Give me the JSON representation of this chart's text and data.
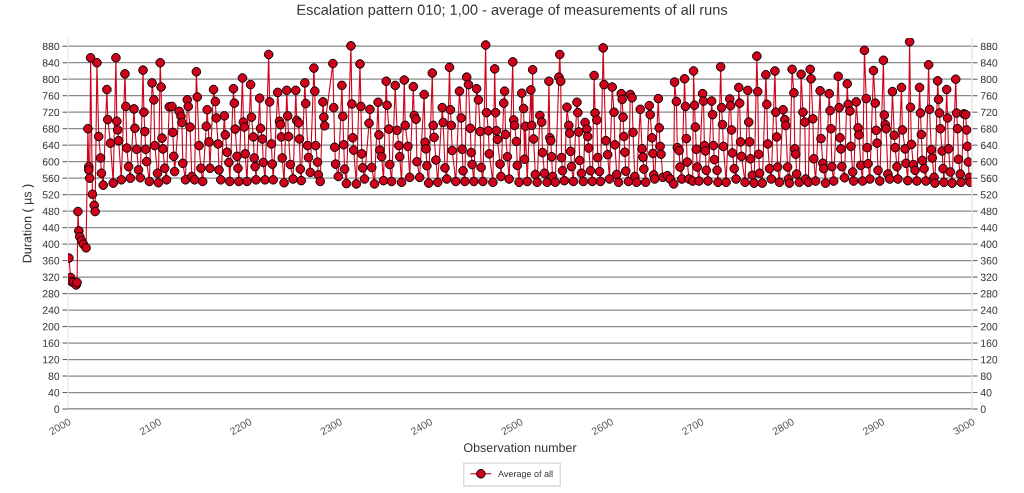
{
  "chart_data": {
    "type": "line",
    "title": "Escalation pattern 010; 1,00 - average of measurements of all runs",
    "xlabel": "Observation number",
    "ylabel": "Duration ( µs )",
    "series": [
      {
        "name": "Average of all",
        "color": "#d0021b",
        "x": [
          2001,
          2003,
          2004,
          2006,
          2009,
          2010,
          2011,
          2012,
          2013,
          2015,
          2017,
          2020,
          2022,
          2023,
          2023,
          2024,
          2025,
          2027,
          2029,
          2030,
          2032,
          2034,
          2036,
          2037,
          2039,
          2043,
          2044,
          2047,
          2050,
          2053,
          2054,
          2055,
          2056,
          2059,
          2063,
          2064,
          2065,
          2067,
          2069,
          2073,
          2074,
          2076,
          2078,
          2080,
          2083,
          2084,
          2085,
          2086,
          2087,
          2090,
          2093,
          2095,
          2096,
          2099,
          2100,
          2102,
          2103,
          2104,
          2105,
          2107,
          2109,
          2112,
          2115,
          2116,
          2117,
          2118,
          2123,
          2125,
          2126,
          2127,
          2130,
          2132,
          2133,
          2135,
          2137,
          2140,
          2142,
          2143,
          2145,
          2147,
          2149,
          2153,
          2154,
          2156,
          2157,
          2161,
          2163,
          2164,
          2166,
          2167,
          2169,
          2173,
          2174,
          2176,
          2178,
          2179,
          2183,
          2184,
          2185,
          2187,
          2188,
          2189,
          2193,
          2194,
          2195,
          2196,
          2198,
          2202,
          2203,
          2205,
          2206,
          2207,
          2208,
          2212,
          2213,
          2215,
          2216,
          2218,
          2222,
          2223,
          2225,
          2226,
          2227,
          2232,
          2234,
          2235,
          2236,
          2237,
          2239,
          2242,
          2243,
          2244,
          2246,
          2249,
          2252,
          2253,
          2255,
          2256,
          2257,
          2258,
          2262,
          2263,
          2265,
          2266,
          2268,
          2272,
          2273,
          2274,
          2276,
          2277,
          2279,
          2282,
          2283,
          2284,
          2293,
          2294,
          2295,
          2296,
          2299,
          2303,
          2304,
          2305,
          2306,
          2308,
          2313,
          2314,
          2315,
          2316,
          2319,
          2323,
          2324,
          2325,
          2326,
          2328,
          2333,
          2334,
          2336,
          2339,
          2343,
          2344,
          2345,
          2347,
          2349,
          2352,
          2353,
          2355,
          2356,
          2358,
          2362,
          2364,
          2366,
          2367,
          2369,
          2372,
          2373,
          2376,
          2378,
          2382,
          2383,
          2385,
          2386,
          2389,
          2394,
          2395,
          2396,
          2397,
          2399,
          2403,
          2404,
          2405,
          2407,
          2409,
          2414,
          2415,
          2417,
          2419,
          2422,
          2423,
          2424,
          2425,
          2429,
          2433,
          2435,
          2436,
          2437,
          2439,
          2441,
          2443,
          2445,
          2446,
          2447,
          2449,
          2452,
          2454,
          2456,
          2457,
          2459,
          2462,
          2463,
          2465,
          2466,
          2470,
          2472,
          2473,
          2474,
          2475,
          2478,
          2479,
          2482,
          2483,
          2484,
          2486,
          2488,
          2492,
          2493,
          2494,
          2496,
          2497,
          2499,
          2502,
          2504,
          2505,
          2506,
          2508,
          2512,
          2513,
          2514,
          2515,
          2517,
          2519,
          2522,
          2524,
          2525,
          2527,
          2530,
          2532,
          2533,
          2534,
          2535,
          2536,
          2539,
          2543,
          2544,
          2545,
          2546,
          2547,
          2549,
          2552,
          2554,
          2555,
          2556,
          2557,
          2559,
          2563,
          2564,
          2565,
          2566,
          2568,
          2570,
          2572,
          2574,
          2575,
          2576,
          2578,
          2580,
          2582,
          2583,
          2585,
          2586,
          2588,
          2589,
          2592,
          2593,
          2595,
          2597,
          2599,
          2602,
          2604,
          2605,
          2607,
          2609,
          2612,
          2613,
          2614,
          2615,
          2616,
          2617,
          2620,
          2622,
          2624,
          2625,
          2627,
          2629,
          2633,
          2635,
          2636,
          2637,
          2639,
          2643,
          2644,
          2646,
          2647,
          2648,
          2649,
          2653,
          2654,
          2655,
          2656,
          2658,
          2663,
          2666,
          2670,
          2671,
          2673,
          2674,
          2676,
          2677,
          2679,
          2682,
          2683,
          2684,
          2685,
          2687,
          2691,
          2692,
          2693,
          2694,
          2695,
          2696,
          2698,
          2702,
          2703,
          2704,
          2705,
          2706,
          2708,
          2712,
          2713,
          2714,
          2715,
          2718,
          2719,
          2722,
          2723,
          2724,
          2725,
          2728,
          2732,
          2733,
          2734,
          2735,
          2737,
          2739,
          2742,
          2743,
          2744,
          2745,
          2749,
          2752,
          2753,
          2754,
          2755,
          2757,
          2759,
          2762,
          2763,
          2764,
          2765,
          2768,
          2772,
          2773,
          2774,
          2776,
          2778,
          2782,
          2783,
          2784,
          2785,
          2787,
          2791,
          2793,
          2794,
          2796,
          2797,
          2798,
          2801,
          2803,
          2804,
          2805,
          2806,
          2809,
          2811,
          2813,
          2815,
          2816,
          2819,
          2821,
          2822,
          2824,
          2825,
          2827,
          2832,
          2833,
          2835,
          2836,
          2838,
          2842,
          2843,
          2844,
          2845,
          2847,
          2852,
          2853,
          2854,
          2855,
          2856,
          2859,
          2862,
          2863,
          2865,
          2866,
          2868,
          2869,
          2872,
          2874,
          2875,
          2877,
          2879,
          2881,
          2883,
          2884,
          2885,
          2887,
          2891,
          2893,
          2894,
          2895,
          2896,
          2898,
          2902,
          2903,
          2904,
          2905,
          2907,
          2909,
          2912,
          2914,
          2915,
          2917,
          2918,
          2922,
          2923,
          2926,
          2927,
          2929,
          2931,
          2932,
          2933,
          2935,
          2937,
          2939,
          2942,
          2943,
          2944,
          2945,
          2947,
          2949,
          2952,
          2953,
          2955,
          2956,
          2958,
          2959,
          2962,
          2963,
          2964,
          2965,
          2967,
          2968,
          2969,
          2972,
          2973,
          2974,
          2976,
          2978,
          2982,
          2983,
          2984,
          2985,
          2987,
          2988,
          2991,
          2993,
          2994,
          2995,
          2996,
          2997,
          2998
        ],
        "values": [
          366,
          319,
          309,
          307,
          301,
          307,
          479,
          432,
          418,
          408,
          400,
          391,
          680,
          588,
          580,
          560,
          852,
          521,
          494,
          479,
          840,
          661,
          609,
          572,
          543,
          775,
          702,
          645,
          548,
          852,
          698,
          677,
          651,
          556,
          813,
          734,
          633,
          588,
          560,
          728,
          681,
          630,
          580,
          561,
          822,
          720,
          673,
          630,
          600,
          552,
          791,
          750,
          639,
          572,
          549,
          840,
          781,
          657,
          631,
          584,
          556,
          733,
          734,
          671,
          613,
          576,
          722,
          710,
          695,
          596,
          556,
          750,
          734,
          684,
          564,
          556,
          818,
          757,
          639,
          584,
          552,
          686,
          726,
          648,
          584,
          775,
          746,
          706,
          643,
          580,
          556,
          711,
          665,
          623,
          598,
          552,
          777,
          742,
          679,
          613,
          584,
          552,
          803,
          696,
          684,
          619,
          552,
          787,
          708,
          660,
          609,
          588,
          556,
          754,
          681,
          655,
          598,
          556,
          860,
          745,
          643,
          594,
          556,
          768,
          698,
          690,
          660,
          609,
          549,
          773,
          711,
          661,
          593,
          558,
          773,
          700,
          694,
          655,
          582,
          554,
          791,
          741,
          639,
          610,
          574,
          827,
          771,
          639,
          599,
          568,
          552,
          745,
          708,
          687,
          838,
          731,
          635,
          594,
          564,
          785,
          710,
          641,
          582,
          547,
          881,
          740,
          658,
          628,
          546,
          837,
          734,
          619,
          585,
          558,
          693,
          727,
          586,
          546,
          744,
          665,
          628,
          612,
          554,
          795,
          737,
          679,
          593,
          552,
          785,
          676,
          639,
          612,
          550,
          798,
          688,
          637,
          562,
          782,
          712,
          703,
          600,
          562,
          763,
          647,
          631,
          590,
          548,
          815,
          688,
          659,
          604,
          550,
          731,
          695,
          585,
          558,
          829,
          726,
          688,
          627,
          552,
          771,
          706,
          630,
          578,
          552,
          805,
          787,
          681,
          622,
          593,
          552,
          777,
          750,
          673,
          586,
          552,
          883,
          719,
          675,
          619,
          550,
          825,
          719,
          675,
          654,
          594,
          564,
          742,
          771,
          666,
          612,
          558,
          842,
          701,
          688,
          649,
          591,
          550,
          766,
          729,
          606,
          686,
          552,
          774,
          688,
          823,
          655,
          569,
          550,
          712,
          696,
          622,
          572,
          550,
          795,
          658,
          651,
          612,
          564,
          550,
          805,
          860,
          795,
          610,
          578,
          554,
          732,
          688,
          669,
          625,
          588,
          552,
          744,
          719,
          672,
          603,
          572,
          552,
          695,
          679,
          661,
          633,
          578,
          552,
          809,
          718,
          701,
          610,
          576,
          552,
          876,
          787,
          651,
          617,
          558,
          781,
          720,
          641,
          569,
          550,
          765,
          751,
          708,
          661,
          623,
          577,
          552,
          763,
          755,
          671,
          564,
          550,
          727,
          631,
          611,
          582,
          550,
          736,
          714,
          658,
          620,
          568,
          558,
          753,
          682,
          637,
          618,
          562,
          566,
          558,
          546,
          793,
          746,
          634,
          627,
          587,
          558,
          801,
          734,
          656,
          599,
          558,
          553,
          820,
          737,
          684,
          630,
          587,
          553,
          765,
          747,
          639,
          626,
          579,
          553,
          747,
          714,
          639,
          605,
          579,
          550,
          830,
          731,
          690,
          637,
          550,
          752,
          736,
          677,
          621,
          583,
          558,
          780,
          742,
          648,
          613,
          550,
          773,
          696,
          648,
          607,
          567,
          548,
          856,
          770,
          618,
          572,
          548,
          811,
          739,
          643,
          583,
          558,
          820,
          720,
          660,
          587,
          550,
          726,
          702,
          688,
          587,
          558,
          548,
          824,
          767,
          631,
          618,
          570,
          550,
          812,
          720,
          696,
          558,
          550,
          824,
          801,
          704,
          607,
          553,
          772,
          656,
          596,
          583,
          548,
          765,
          724,
          680,
          588,
          553,
          807,
          731,
          658,
          631,
          588,
          561,
          789,
          739,
          723,
          637,
          575,
          553,
          745,
          682,
          665,
          591,
          553,
          870,
          753,
          634,
          595,
          558,
          821,
          742,
          676,
          645,
          579,
          553,
          846,
          713,
          690,
          680,
          570,
          558,
          770,
          664,
          634,
          588,
          558,
          780,
          677,
          631,
          596,
          554,
          891,
          732,
          642,
          593,
          579,
          553,
          780,
          718,
          666,
          603,
          583,
          553,
          835,
          727,
          629,
          609,
          562,
          548,
          796,
          751,
          718,
          680,
          626,
          583,
          550,
          775,
          706,
          631,
          575,
          548,
          800,
          718,
          680,
          606,
          570,
          550,
          716,
          714,
          677,
          637,
          599,
          562,
          550
        ]
      }
    ],
    "xlim": [
      2000,
      3000
    ],
    "xticks": [
      2000,
      2100,
      2200,
      2300,
      2400,
      2500,
      2600,
      2700,
      2800,
      2900,
      3000
    ],
    "ylim": [
      0,
      900
    ],
    "yticks": [
      0,
      40,
      80,
      120,
      160,
      200,
      240,
      280,
      320,
      360,
      400,
      440,
      480,
      520,
      560,
      600,
      640,
      680,
      720,
      760,
      800,
      840,
      880
    ],
    "y2lim": [
      0,
      900
    ],
    "y2ticks": [
      0,
      40,
      80,
      120,
      160,
      200,
      240,
      280,
      320,
      360,
      400,
      440,
      480,
      520,
      560,
      600,
      640,
      680,
      720,
      760,
      800,
      840,
      880
    ],
    "grid": "y",
    "legend": "bottom",
    "marker": "circle",
    "line_style": "solid"
  }
}
